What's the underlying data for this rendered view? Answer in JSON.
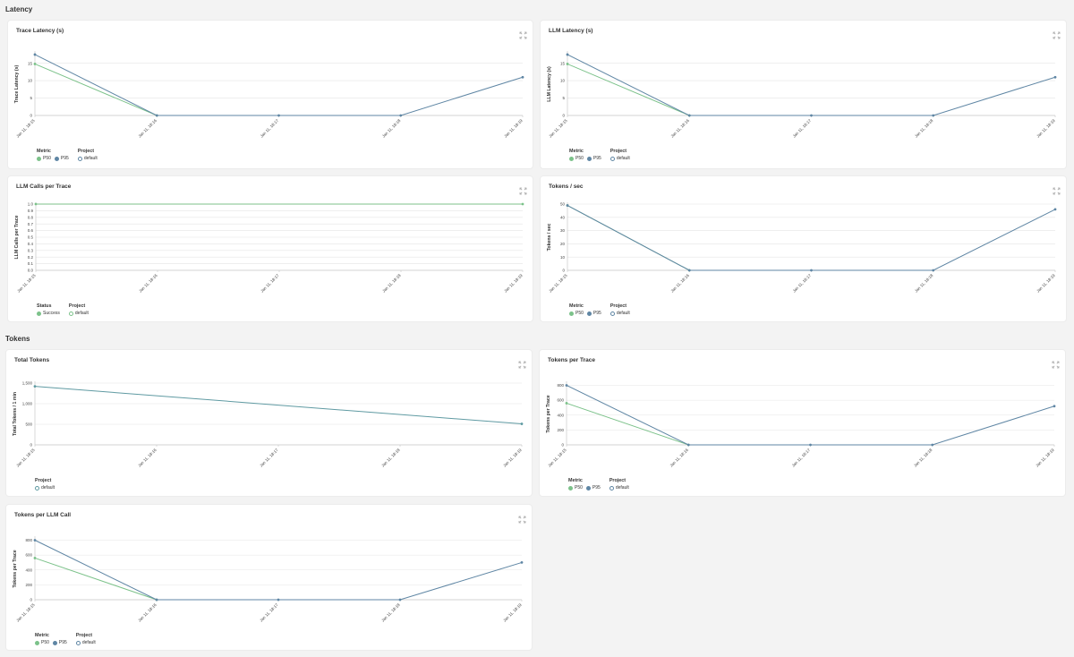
{
  "sections": {
    "latency": "Latency",
    "tokens": "Tokens"
  },
  "colors": {
    "p50": "#7cc28a",
    "p95": "#5f86a4",
    "single": "#5f9aa2",
    "grid": "#e5e5e5",
    "axis": "#c8c8c8"
  },
  "x_ticks": [
    "Jan 11, 18:15",
    "Jan 11, 18:16",
    "Jan 11, 18:17",
    "Jan 11, 18:18",
    "Jan 11, 18:19"
  ],
  "cards": [
    {
      "title": "Trace Latency (s)",
      "chart_data": {
        "type": "line",
        "title": "Trace Latency (s)",
        "ylabel": "Trace Latency (s)",
        "xlabel": "",
        "categories": [
          "Jan 11, 18:15",
          "Jan 11, 18:16",
          "Jan 11, 18:17",
          "Jan 11, 18:18",
          "Jan 11, 18:19"
        ],
        "yticks": [
          "0",
          "5",
          "10",
          "15"
        ],
        "ytick_values": [
          0,
          5,
          10,
          15
        ],
        "ylim": [
          0,
          18
        ],
        "series": [
          {
            "name": "P50",
            "color": "#7cc28a",
            "values": [
              14.8,
              0,
              null,
              null,
              null
            ]
          },
          {
            "name": "P95",
            "color": "#5f86a4",
            "values": [
              17.5,
              0,
              0,
              0,
              11
            ]
          }
        ]
      },
      "legend": [
        {
          "heading": "Metric",
          "items": [
            {
              "label": "P50",
              "color": "#7cc28a",
              "hollow": false
            },
            {
              "label": "P95",
              "color": "#5f86a4",
              "hollow": false
            }
          ]
        },
        {
          "heading": "Project",
          "items": [
            {
              "label": "default",
              "color": "#5f86a4",
              "hollow": true
            }
          ]
        }
      ]
    },
    {
      "title": "LLM Latency (s)",
      "chart_data": {
        "type": "line",
        "title": "LLM Latency (s)",
        "ylabel": "LLM Latency (s)",
        "xlabel": "",
        "categories": [
          "Jan 11, 18:15",
          "Jan 11, 18:16",
          "Jan 11, 18:17",
          "Jan 11, 18:18",
          "Jan 11, 18:19"
        ],
        "yticks": [
          "0",
          "5",
          "10",
          "15"
        ],
        "ytick_values": [
          0,
          5,
          10,
          15
        ],
        "ylim": [
          0,
          18
        ],
        "series": [
          {
            "name": "P50",
            "color": "#7cc28a",
            "values": [
              14.8,
              0,
              null,
              null,
              null
            ]
          },
          {
            "name": "P95",
            "color": "#5f86a4",
            "values": [
              17.5,
              0,
              0,
              0,
              11
            ]
          }
        ]
      },
      "legend": [
        {
          "heading": "Metric",
          "items": [
            {
              "label": "P50",
              "color": "#7cc28a",
              "hollow": false
            },
            {
              "label": "P95",
              "color": "#5f86a4",
              "hollow": false
            }
          ]
        },
        {
          "heading": "Project",
          "items": [
            {
              "label": "default",
              "color": "#5f86a4",
              "hollow": true
            }
          ]
        }
      ]
    },
    {
      "title": "LLM Calls per Trace",
      "chart_data": {
        "type": "line",
        "title": "LLM Calls per Trace",
        "ylabel": "LLM Calls per Trace",
        "xlabel": "",
        "categories": [
          "Jan 11, 18:15",
          "Jan 11, 18:16",
          "Jan 11, 18:17",
          "Jan 11, 18:18",
          "Jan 11, 18:19"
        ],
        "yticks": [
          "0.0",
          "0.1",
          "0.2",
          "0.3",
          "0.4",
          "0.5",
          "0.6",
          "0.7",
          "0.8",
          "0.9",
          "1.0"
        ],
        "ytick_values": [
          0,
          0.1,
          0.2,
          0.3,
          0.4,
          0.5,
          0.6,
          0.7,
          0.8,
          0.9,
          1.0
        ],
        "ylim": [
          0,
          1
        ],
        "series": [
          {
            "name": "Success",
            "color": "#7cc28a",
            "values": [
              1,
              null,
              null,
              null,
              1
            ]
          }
        ]
      },
      "legend": [
        {
          "heading": "Status",
          "items": [
            {
              "label": "Success",
              "color": "#7cc28a",
              "hollow": false
            }
          ]
        },
        {
          "heading": "Project",
          "items": [
            {
              "label": "default",
              "color": "#7cc28a",
              "hollow": true
            }
          ]
        }
      ]
    },
    {
      "title": "Tokens / sec",
      "chart_data": {
        "type": "line",
        "title": "Tokens / sec",
        "ylabel": "Tokens / sec",
        "xlabel": "",
        "categories": [
          "Jan 11, 18:15",
          "Jan 11, 18:16",
          "Jan 11, 18:17",
          "Jan 11, 18:18",
          "Jan 11, 18:19"
        ],
        "yticks": [
          "0",
          "10",
          "20",
          "30",
          "40",
          "50"
        ],
        "ytick_values": [
          0,
          10,
          20,
          30,
          40,
          50
        ],
        "ylim": [
          0,
          50
        ],
        "series": [
          {
            "name": "P50",
            "color": "#7cc28a",
            "values": [
              49,
              0,
              null,
              null,
              null
            ]
          },
          {
            "name": "P95",
            "color": "#5f86a4",
            "values": [
              49,
              0,
              0,
              0,
              46
            ]
          }
        ]
      },
      "legend": [
        {
          "heading": "Metric",
          "items": [
            {
              "label": "P50",
              "color": "#7cc28a",
              "hollow": false
            },
            {
              "label": "P95",
              "color": "#5f86a4",
              "hollow": false
            }
          ]
        },
        {
          "heading": "Project",
          "items": [
            {
              "label": "default",
              "color": "#5f86a4",
              "hollow": true
            }
          ]
        }
      ]
    },
    {
      "title": "Total Tokens",
      "chart_data": {
        "type": "line",
        "title": "Total Tokens",
        "ylabel": "Total Tokens / 1 min",
        "xlabel": "",
        "categories": [
          "Jan 11, 18:15",
          "Jan 11, 18:16",
          "Jan 11, 18:17",
          "Jan 11, 18:18",
          "Jan 11, 18:19"
        ],
        "yticks": [
          "0",
          "500",
          "1,000",
          "1,500"
        ],
        "ytick_values": [
          0,
          500,
          1000,
          1500
        ],
        "ylim": [
          0,
          1500
        ],
        "series": [
          {
            "name": "default",
            "color": "#5f9aa2",
            "values": [
              1420,
              null,
              null,
              null,
              510
            ]
          }
        ]
      },
      "legend": [
        {
          "heading": "Project",
          "items": [
            {
              "label": "default",
              "color": "#5f9aa2",
              "hollow": true
            }
          ]
        }
      ]
    },
    {
      "title": "Tokens per Trace",
      "chart_data": {
        "type": "line",
        "title": "Tokens per Trace",
        "ylabel": "Tokens per Trace",
        "xlabel": "",
        "categories": [
          "Jan 11, 18:15",
          "Jan 11, 18:16",
          "Jan 11, 18:17",
          "Jan 11, 18:18",
          "Jan 11, 18:19"
        ],
        "yticks": [
          "0",
          "200",
          "400",
          "600",
          "800"
        ],
        "ytick_values": [
          0,
          200,
          400,
          600,
          800
        ],
        "ylim": [
          0,
          830
        ],
        "series": [
          {
            "name": "P50",
            "color": "#7cc28a",
            "values": [
              560,
              0,
              null,
              null,
              null
            ]
          },
          {
            "name": "P95",
            "color": "#5f86a4",
            "values": [
              800,
              0,
              0,
              0,
              520
            ]
          }
        ]
      },
      "legend": [
        {
          "heading": "Metric",
          "items": [
            {
              "label": "P50",
              "color": "#7cc28a",
              "hollow": false
            },
            {
              "label": "P95",
              "color": "#5f86a4",
              "hollow": false
            }
          ]
        },
        {
          "heading": "Project",
          "items": [
            {
              "label": "default",
              "color": "#5f86a4",
              "hollow": true
            }
          ]
        }
      ]
    },
    {
      "title": "Tokens per LLM Call",
      "chart_data": {
        "type": "line",
        "title": "Tokens per LLM Call",
        "ylabel": "Tokens per Trace",
        "xlabel": "",
        "categories": [
          "Jan 11, 18:15",
          "Jan 11, 18:16",
          "Jan 11, 18:17",
          "Jan 11, 18:18",
          "Jan 11, 18:19"
        ],
        "yticks": [
          "0",
          "200",
          "400",
          "600",
          "800"
        ],
        "ytick_values": [
          0,
          200,
          400,
          600,
          800
        ],
        "ylim": [
          0,
          830
        ],
        "series": [
          {
            "name": "P50",
            "color": "#7cc28a",
            "values": [
              560,
              0,
              null,
              null,
              null
            ]
          },
          {
            "name": "P95",
            "color": "#5f86a4",
            "values": [
              800,
              0,
              0,
              0,
              500
            ]
          }
        ]
      },
      "legend": [
        {
          "heading": "Metric",
          "items": [
            {
              "label": "P50",
              "color": "#7cc28a",
              "hollow": false
            },
            {
              "label": "P95",
              "color": "#5f86a4",
              "hollow": false
            }
          ]
        },
        {
          "heading": "Project",
          "items": [
            {
              "label": "default",
              "color": "#5f86a4",
              "hollow": true
            }
          ]
        }
      ]
    }
  ]
}
